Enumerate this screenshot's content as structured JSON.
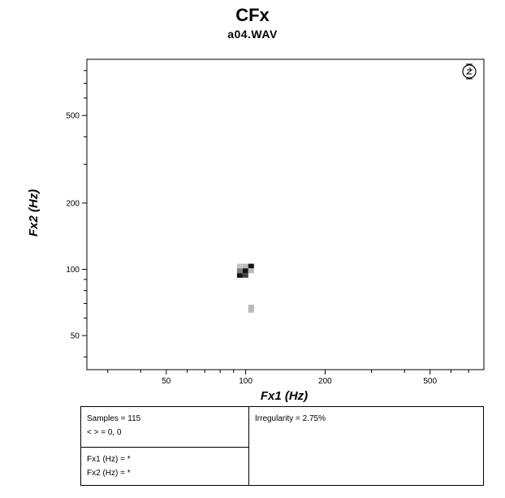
{
  "chart_data": {
    "type": "heatmap",
    "title": "CFx",
    "subtitle": "a04.WAV",
    "xlabel": "Fx1 (Hz)",
    "ylabel": "Fx2 (Hz)",
    "xscale": "log",
    "yscale": "log",
    "xlim": [
      25,
      800
    ],
    "ylim": [
      35,
      900
    ],
    "x_ticks": [
      50,
      100,
      200,
      500
    ],
    "y_ticks": [
      50,
      100,
      200,
      500
    ],
    "x_minor_ticks": [
      30,
      40,
      60,
      70,
      80,
      90,
      300,
      400,
      600,
      700
    ],
    "y_minor_ticks": [
      40,
      60,
      70,
      80,
      90,
      300,
      400,
      600,
      700,
      800
    ],
    "grid": false,
    "cells": [
      {
        "x0": 92.7,
        "x1": 97.4,
        "y0": 101,
        "y1": 106,
        "level": 0.25
      },
      {
        "x0": 97.4,
        "x1": 102.3,
        "y0": 101,
        "y1": 106,
        "level": 0.3
      },
      {
        "x0": 102.3,
        "x1": 107.5,
        "y0": 101,
        "y1": 106,
        "level": 1.0
      },
      {
        "x0": 92.7,
        "x1": 97.4,
        "y0": 96,
        "y1": 101,
        "level": 0.55
      },
      {
        "x0": 97.4,
        "x1": 102.3,
        "y0": 96,
        "y1": 101,
        "level": 1.0
      },
      {
        "x0": 102.3,
        "x1": 107.5,
        "y0": 96,
        "y1": 101,
        "level": 0.3
      },
      {
        "x0": 92.7,
        "x1": 97.4,
        "y0": 91.5,
        "y1": 96,
        "level": 1.0
      },
      {
        "x0": 97.4,
        "x1": 102.3,
        "y0": 91.5,
        "y1": 96,
        "level": 0.8
      },
      {
        "x0": 102.3,
        "x1": 107.5,
        "y0": 63.5,
        "y1": 69,
        "level": 0.3
      }
    ]
  },
  "info": {
    "samples": "Samples = 115",
    "mean": "< > = 0, 0",
    "fx1": "Fx1 (Hz) = *",
    "fx2": "Fx2 (Hz) = *",
    "irregularity": "Irregularity = 2.75%"
  },
  "icons": {
    "zoom": "zoom-reset-icon"
  }
}
